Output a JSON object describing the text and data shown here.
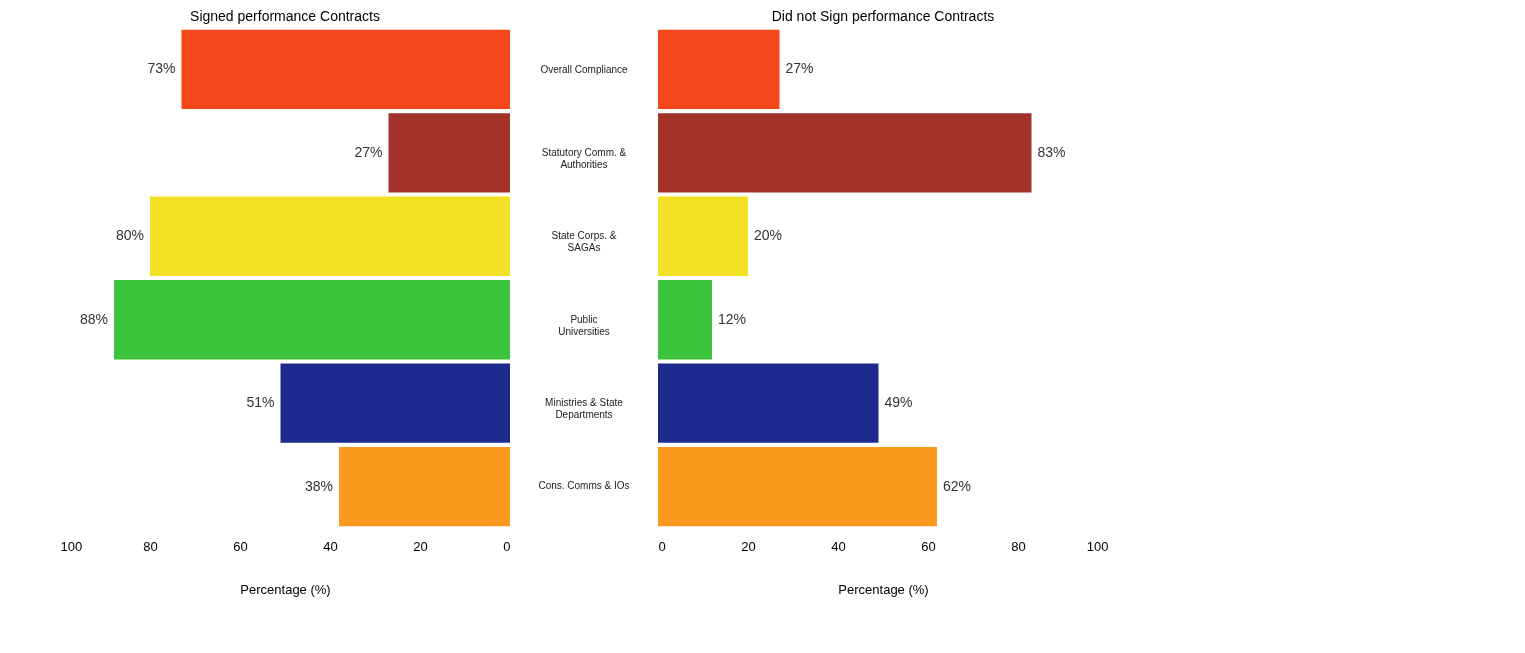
{
  "chart_data": [
    {
      "type": "bar",
      "orientation": "horizontal",
      "title": "Signed performance Contracts",
      "xlabel": "Percentage (%)",
      "categories": [
        "Overall Compliance",
        "Statutory Comm. & Authorities",
        "State Corps. & SAGAs",
        "Public Universities",
        "Ministries & State Departments",
        "Cons. Comms & IOs"
      ],
      "values": [
        73,
        27,
        80,
        88,
        51,
        38
      ],
      "value_labels": [
        "73%",
        "27%",
        "80%",
        "88%",
        "51%",
        "38%"
      ],
      "colors": [
        "#f5471c",
        "#a3332a",
        "#f2e024",
        "#3cc43c",
        "#1e2a8e",
        "#fb9a1e"
      ],
      "xlim": [
        100,
        0
      ],
      "xticks": [
        100,
        80,
        60,
        40,
        20,
        0
      ],
      "grid": false
    },
    {
      "type": "bar",
      "orientation": "horizontal",
      "title": "Did not Sign performance Contracts",
      "xlabel": "Percentage (%)",
      "categories": [
        "Overall Compliance",
        "Statutory Comm. & Authorities",
        "State Corps. & SAGAs",
        "Public Universities",
        "Ministries & State Departments",
        "Cons. Comms & IOs"
      ],
      "values": [
        27,
        83,
        20,
        12,
        49,
        62
      ],
      "value_labels": [
        "27%",
        "83%",
        "20%",
        "12%",
        "49%",
        "62%"
      ],
      "colors": [
        "#f5471c",
        "#a3332a",
        "#f2e024",
        "#3cc43c",
        "#1e2a8e",
        "#fb9a1e"
      ],
      "xlim": [
        0,
        100
      ],
      "xticks": [
        0,
        20,
        40,
        60,
        80,
        100
      ],
      "grid": false,
      "tick_labels": "x"
    }
  ]
}
